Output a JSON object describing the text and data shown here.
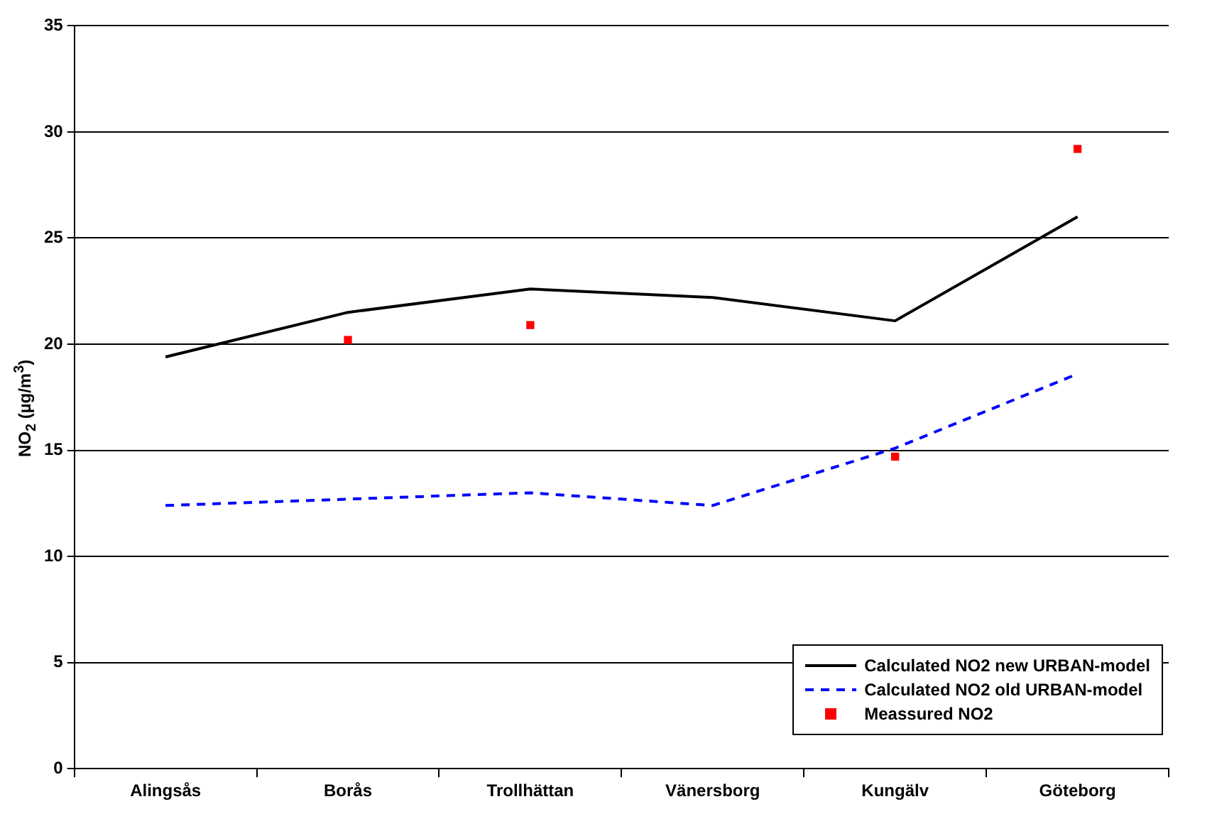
{
  "chart_data": {
    "type": "line",
    "ylabel": "NO$_{2}$ (µg/m$^{3}$)",
    "categories": [
      "Alingsås",
      "Borås",
      "Trollhättan",
      "Vänersborg",
      "Kungälv",
      "Göteborg"
    ],
    "series": [
      {
        "name": "Calculated NO2 new URBAN-model",
        "color": "#000000",
        "line_style": "solid",
        "marker": "none",
        "values": [
          19.4,
          21.5,
          22.6,
          22.2,
          21.1,
          26.0
        ]
      },
      {
        "name": "Calculated NO2 old URBAN-model",
        "color": "#0000ff",
        "line_style": "dashed",
        "marker": "none",
        "values": [
          12.4,
          12.7,
          13.0,
          12.4,
          15.1,
          18.6
        ]
      },
      {
        "name": "Meassured NO2",
        "type": "scatter",
        "color": "#ff0000",
        "marker": "square",
        "values": [
          null,
          20.2,
          20.9,
          null,
          14.7,
          29.2
        ]
      }
    ],
    "ylim": [
      0,
      35
    ],
    "yticks": [
      0,
      5,
      10,
      15,
      20,
      25,
      30,
      35
    ],
    "grid": "y",
    "legend": "bottom right"
  }
}
